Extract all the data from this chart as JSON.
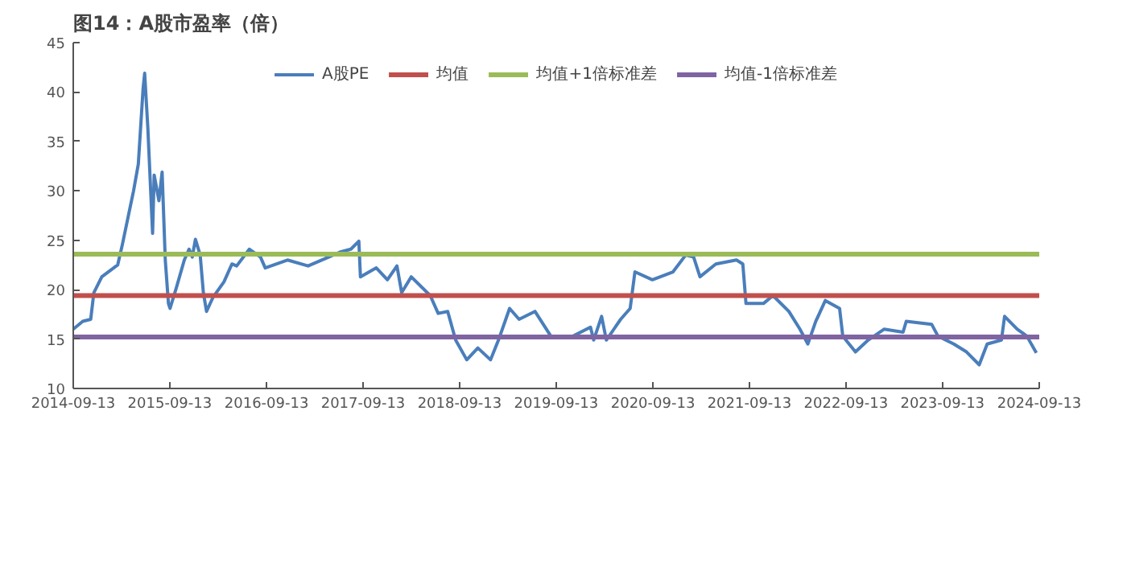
{
  "chart_data": {
    "type": "line",
    "title": "图14：A股市盈率（倍）",
    "x": [
      "2014-09-13",
      "2014-10-19",
      "2014-11-18",
      "2014-11-30",
      "2014-12-30",
      "2015-02-28",
      "2015-03-18",
      "2015-04-29",
      "2015-05-17",
      "2015-06-04",
      "2015-06-10",
      "2015-06-22",
      "2015-07-10",
      "2015-07-16",
      "2015-08-03",
      "2015-08-15",
      "2015-08-27",
      "2015-09-08",
      "2015-09-14",
      "2015-10-08",
      "2015-11-07",
      "2015-11-25",
      "2015-12-07",
      "2015-12-19",
      "2016-01-06",
      "2016-01-18",
      "2016-01-30",
      "2016-02-23",
      "2016-04-05",
      "2016-05-05",
      "2016-05-23",
      "2016-07-10",
      "2016-08-21",
      "2016-09-08",
      "2016-12-01",
      "2017-02-17",
      "2017-05-06",
      "2017-06-17",
      "2017-07-29",
      "2017-08-28",
      "2017-09-03",
      "2017-11-02",
      "2017-12-14",
      "2018-01-19",
      "2018-02-06",
      "2018-03-14",
      "2018-05-25",
      "2018-06-24",
      "2018-07-30",
      "2018-08-29",
      "2018-10-10",
      "2018-11-21",
      "2019-01-08",
      "2019-02-07",
      "2019-03-21",
      "2019-04-26",
      "2019-06-25",
      "2019-08-24",
      "2019-11-16",
      "2020-01-21",
      "2020-02-02",
      "2020-03-03",
      "2020-03-21",
      "2020-05-14",
      "2020-06-19",
      "2020-07-07",
      "2020-09-11",
      "2020-11-28",
      "2021-01-15",
      "2021-02-14",
      "2021-03-10",
      "2021-05-09",
      "2021-07-26",
      "2021-08-19",
      "2021-08-31",
      "2021-11-05",
      "2021-12-11",
      "2022-02-09",
      "2022-03-23",
      "2022-04-22",
      "2022-05-22",
      "2022-06-27",
      "2022-08-20",
      "2022-09-01",
      "2022-10-19",
      "2022-12-06",
      "2023-02-04",
      "2023-04-17",
      "2023-04-29",
      "2023-08-03",
      "2023-08-27",
      "2023-10-26",
      "2023-12-13",
      "2024-01-30",
      "2024-02-29",
      "2024-04-23",
      "2024-05-05",
      "2024-06-22",
      "2024-07-28",
      "2024-09-02"
    ],
    "series": [
      {
        "name": "A股PE",
        "color": "#4a7ebb",
        "values": [
          16.0,
          16.8,
          17.0,
          19.7,
          21.3,
          22.5,
          24.6,
          30.0,
          32.7,
          40.3,
          41.9,
          36.4,
          25.7,
          31.6,
          29.0,
          31.9,
          23.0,
          18.6,
          18.1,
          20.2,
          23.0,
          24.1,
          23.3,
          25.1,
          23.5,
          19.7,
          17.8,
          19.2,
          20.8,
          22.6,
          22.4,
          24.1,
          23.3,
          22.2,
          23.0,
          22.4,
          23.3,
          23.8,
          24.1,
          24.9,
          21.3,
          22.2,
          21.0,
          22.4,
          19.7,
          21.3,
          19.4,
          17.6,
          17.8,
          14.9,
          12.9,
          14.1,
          12.9,
          14.9,
          18.1,
          17.0,
          17.8,
          15.3,
          15.3,
          16.2,
          14.9,
          17.3,
          14.9,
          17.0,
          18.1,
          21.8,
          21.0,
          21.8,
          23.5,
          23.3,
          21.3,
          22.6,
          23.0,
          22.6,
          18.6,
          18.6,
          19.4,
          17.8,
          16.0,
          14.5,
          16.8,
          18.9,
          18.1,
          15.3,
          13.7,
          14.9,
          16.0,
          15.7,
          16.8,
          16.5,
          15.3,
          14.5,
          13.7,
          12.4,
          14.5,
          14.9,
          17.3,
          16.0,
          15.3,
          13.6
        ]
      }
    ],
    "ref_lines": [
      {
        "axis": "y",
        "value": 19.4,
        "label": "均值",
        "color": "#c0504d"
      },
      {
        "axis": "y",
        "value": 23.6,
        "label": "均值+1倍标准差",
        "color": "#9bbb59"
      },
      {
        "axis": "y",
        "value": 15.2,
        "label": "均值-1倍标准差",
        "color": "#8064a2"
      }
    ],
    "xlim": [
      "2014-09-13",
      "2024-09-13"
    ],
    "xticks": [
      "2014-09-13",
      "2015-09-13",
      "2016-09-13",
      "2017-09-13",
      "2018-09-13",
      "2019-09-13",
      "2020-09-13",
      "2021-09-13",
      "2022-09-13",
      "2023-09-13",
      "2024-09-13"
    ],
    "ylim": [
      10,
      45
    ],
    "yticks": [
      10,
      15,
      20,
      25,
      30,
      35,
      40,
      45
    ],
    "grid": false,
    "legend": "top",
    "line_style": "solid",
    "marker": "none"
  }
}
